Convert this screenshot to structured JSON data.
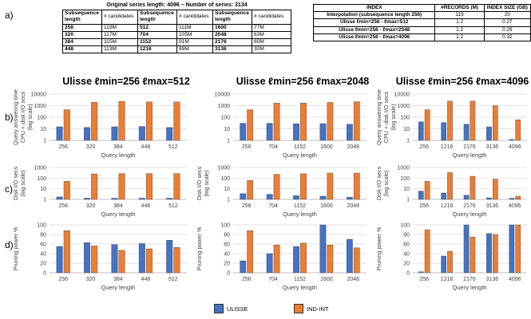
{
  "panel_labels": {
    "a": "a)",
    "b": "b)",
    "c": "c)",
    "d": "d)"
  },
  "table_series": {
    "caption": "Original series length: 4096 – Number of series: 3134",
    "col_header_len": "Subsequence length",
    "col_header_cand": "# candidates",
    "rows": [
      [
        [
          "256",
          "119M"
        ],
        [
          "512",
          "111M"
        ],
        [
          "1600",
          "77M"
        ]
      ],
      [
        [
          "320",
          "117M"
        ],
        [
          "704",
          "105M"
        ],
        [
          "2048",
          "63M"
        ]
      ],
      [
        [
          "384",
          "115M"
        ],
        [
          "1152",
          "91M"
        ],
        [
          "2176",
          "60M"
        ]
      ],
      [
        [
          "448",
          "113M"
        ],
        [
          "1216",
          "89M"
        ],
        [
          "3136",
          "30M"
        ]
      ]
    ]
  },
  "table_index": {
    "headers": [
      "INDEX",
      "#RECORDS (M)",
      "INDEX SIZE (GB)"
    ],
    "rows": [
      {
        "index": "Interpolation (subsequence length 256)",
        "records": "119",
        "size": "20"
      },
      {
        "index": "Ulisse ℓmin=256 - ℓmax=512",
        "records": "1.2",
        "size": "0.27"
      },
      {
        "index": "Ulisse ℓmin=256 - ℓmax=2048",
        "records": "1.2",
        "size": "0.29"
      },
      {
        "index": "Ulisse ℓmin=256 - ℓmax=4096",
        "records": "1.2",
        "size": "0.32"
      }
    ]
  },
  "column_titles": [
    "Ulisse ℓmin=256 ℓmax=512",
    "Ulisse ℓmin=256 ℓmax=2048",
    "Ulisse ℓmin=256 ℓmax=4096"
  ],
  "legend": {
    "ulisse": "ULISSE",
    "indint": "IND-INT"
  },
  "colors": {
    "ulisse": "#4472C4",
    "indint": "#ED7D31",
    "grid": "#d9d9d9",
    "axis": "#bfbfbf"
  },
  "chart_data": [
    {
      "id": "b1",
      "type": "bar",
      "ylabel": [
        "Query answering time",
        "CPU + disk I/O secs",
        "(log scale)"
      ],
      "xlabel": "Query length",
      "log": true,
      "ylim": [
        1,
        10000
      ],
      "yticks": [
        "1",
        "10",
        "100",
        "1000",
        "10000"
      ],
      "categories": [
        "256",
        "320",
        "384",
        "448",
        "512"
      ],
      "series": [
        {
          "name": "ULISSE",
          "values": [
            15,
            13,
            15,
            16,
            13
          ]
        },
        {
          "name": "IND-INT",
          "values": [
            450,
            2000,
            2300,
            2100,
            2100
          ]
        }
      ]
    },
    {
      "id": "b2",
      "type": "bar",
      "ylabel": [],
      "xlabel": "Query length",
      "log": true,
      "ylim": [
        1,
        10000
      ],
      "yticks": [
        "1",
        "10",
        "100",
        "1000",
        "10000"
      ],
      "categories": [
        "256",
        "704",
        "1152",
        "1600",
        "2048"
      ],
      "series": [
        {
          "name": "ULISSE",
          "values": [
            30,
            30,
            28,
            28,
            25
          ]
        },
        {
          "name": "IND-INT",
          "values": [
            450,
            1700,
            1700,
            1900,
            2200
          ]
        }
      ]
    },
    {
      "id": "b3",
      "type": "bar",
      "ylabel": [
        "Query answering time",
        "CPU + disk I/O secs",
        "(log scale)"
      ],
      "xlabel": "Query length",
      "log": true,
      "ylim": [
        1,
        10000
      ],
      "yticks": [
        "1",
        "10",
        "100",
        "1000",
        "10000"
      ],
      "categories": [
        "256",
        "1216",
        "2176",
        "3136",
        "4096"
      ],
      "series": [
        {
          "name": "ULISSE",
          "values": [
            40,
            35,
            25,
            15,
            1.2
          ]
        },
        {
          "name": "IND-INT",
          "values": [
            450,
            2500,
            2500,
            1000,
            60
          ]
        }
      ]
    },
    {
      "id": "c1",
      "type": "bar",
      "ylabel": [
        "Disk I/O secs",
        "(log scale)"
      ],
      "xlabel": "Query length",
      "log": true,
      "ylim": [
        1,
        1000
      ],
      "yticks": [
        "1",
        "10",
        "100",
        "1000"
      ],
      "categories": [
        "256",
        "320",
        "384",
        "448",
        "512"
      ],
      "series": [
        {
          "name": "ULISSE",
          "values": [
            1.7,
            1.3,
            1.3,
            1.3,
            1.3
          ]
        },
        {
          "name": "IND-INT",
          "values": [
            50,
            250,
            270,
            270,
            270
          ]
        }
      ]
    },
    {
      "id": "c2",
      "type": "bar",
      "ylabel": [
        "Disk I/O secs",
        "(log scale)"
      ],
      "xlabel": "Query length",
      "log": true,
      "ylim": [
        1,
        1000
      ],
      "yticks": [
        "1",
        "10",
        "100",
        "1000"
      ],
      "categories": [
        "256",
        "704",
        "1152",
        "1600",
        "2048"
      ],
      "series": [
        {
          "name": "ULISSE",
          "values": [
            3.5,
            3,
            2.2,
            2,
            1.6
          ]
        },
        {
          "name": "IND-INT",
          "values": [
            60,
            230,
            260,
            300,
            300
          ]
        }
      ]
    },
    {
      "id": "c3",
      "type": "bar",
      "ylabel": [
        "Disk I/O secs",
        "(log scale)"
      ],
      "xlabel": "Query length",
      "log": true,
      "ylim": [
        1,
        1000
      ],
      "yticks": [
        "1",
        "10",
        "100",
        "1000"
      ],
      "categories": [
        "256",
        "1216",
        "2176",
        "3136",
        "4096"
      ],
      "series": [
        {
          "name": "ULISSE",
          "values": [
            6,
            4,
            2.5,
            1.4,
            1.3
          ]
        },
        {
          "name": "IND-INT",
          "values": [
            50,
            330,
            150,
            80,
            2
          ]
        }
      ]
    },
    {
      "id": "d1",
      "type": "bar",
      "ylabel": [
        "Pruning power %"
      ],
      "xlabel": "Query length",
      "log": false,
      "ylim": [
        0,
        100
      ],
      "yticks": [
        "0",
        "20",
        "40",
        "60",
        "80",
        "100"
      ],
      "categories": [
        "256",
        "320",
        "384",
        "448",
        "512"
      ],
      "series": [
        {
          "name": "ULISSE",
          "values": [
            55,
            63,
            59,
            61,
            68
          ]
        },
        {
          "name": "IND-INT",
          "values": [
            88,
            56,
            47,
            50,
            53
          ]
        }
      ]
    },
    {
      "id": "d2",
      "type": "bar",
      "ylabel": [
        "Pruning power %"
      ],
      "xlabel": "Query length",
      "log": false,
      "ylim": [
        0,
        100
      ],
      "yticks": [
        "0",
        "20",
        "40",
        "60",
        "80",
        "100"
      ],
      "categories": [
        "256",
        "704",
        "1152",
        "1600",
        "2048"
      ],
      "series": [
        {
          "name": "ULISSE",
          "values": [
            25,
            40,
            55,
            100,
            70
          ]
        },
        {
          "name": "IND-INT",
          "values": [
            88,
            58,
            62,
            58,
            52
          ]
        }
      ]
    },
    {
      "id": "d3",
      "type": "bar",
      "ylabel": [
        "Pruning power %"
      ],
      "xlabel": "Query length",
      "log": false,
      "ylim": [
        0,
        100
      ],
      "yticks": [
        "0",
        "20",
        "40",
        "60",
        "80",
        "100"
      ],
      "categories": [
        "256",
        "1216",
        "2176",
        "3136",
        "4096"
      ],
      "series": [
        {
          "name": "ULISSE",
          "values": [
            2,
            35,
            100,
            82,
            100
          ]
        },
        {
          "name": "IND-INT",
          "values": [
            90,
            45,
            75,
            80,
            100
          ]
        }
      ]
    }
  ]
}
